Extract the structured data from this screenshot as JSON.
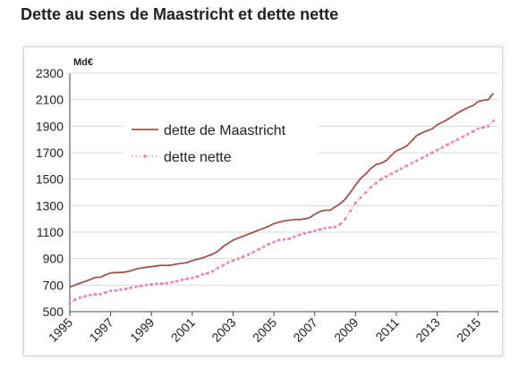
{
  "title": "Dette au sens de Maastricht et dette nette",
  "chart_data": {
    "type": "line",
    "ylabel": "Md€",
    "xlim": [
      1995,
      2016
    ],
    "ylim": [
      500,
      2300
    ],
    "yticks": [
      500,
      700,
      900,
      1100,
      1300,
      1500,
      1700,
      1900,
      2100,
      2300
    ],
    "xticks": [
      "1995",
      "1997",
      "1999",
      "2001",
      "2003",
      "2005",
      "2007",
      "2009",
      "2011",
      "2013",
      "2015"
    ],
    "grid": "horizontal",
    "legend_position": "upper-left inside",
    "series": [
      {
        "name": "dette de Maastricht",
        "color": "#a0524c",
        "style": "solid",
        "x": [
          1995.0,
          1995.25,
          1995.5,
          1995.75,
          1996.0,
          1996.25,
          1996.5,
          1996.75,
          1997.0,
          1997.25,
          1997.5,
          1997.75,
          1998.0,
          1998.25,
          1998.5,
          1998.75,
          1999.0,
          1999.25,
          1999.5,
          1999.75,
          2000.0,
          2000.25,
          2000.5,
          2000.75,
          2001.0,
          2001.25,
          2001.5,
          2001.75,
          2002.0,
          2002.25,
          2002.5,
          2002.75,
          2003.0,
          2003.25,
          2003.5,
          2003.75,
          2004.0,
          2004.25,
          2004.5,
          2004.75,
          2005.0,
          2005.25,
          2005.5,
          2005.75,
          2006.0,
          2006.25,
          2006.5,
          2006.75,
          2007.0,
          2007.25,
          2007.5,
          2007.75,
          2008.0,
          2008.25,
          2008.5,
          2008.75,
          2009.0,
          2009.25,
          2009.5,
          2009.75,
          2010.0,
          2010.25,
          2010.5,
          2010.75,
          2011.0,
          2011.25,
          2011.5,
          2011.75,
          2012.0,
          2012.25,
          2012.5,
          2012.75,
          2013.0,
          2013.25,
          2013.5,
          2013.75,
          2014.0,
          2014.25,
          2014.5,
          2014.75,
          2015.0,
          2015.25,
          2015.5,
          2015.75
        ],
        "values": [
          685,
          700,
          715,
          728,
          742,
          758,
          760,
          778,
          792,
          795,
          795,
          800,
          808,
          822,
          830,
          835,
          840,
          845,
          850,
          848,
          852,
          860,
          865,
          870,
          885,
          895,
          905,
          920,
          935,
          955,
          990,
          1015,
          1040,
          1055,
          1070,
          1085,
          1100,
          1115,
          1130,
          1145,
          1165,
          1175,
          1185,
          1190,
          1195,
          1195,
          1200,
          1210,
          1235,
          1255,
          1265,
          1265,
          1290,
          1315,
          1350,
          1400,
          1455,
          1505,
          1540,
          1580,
          1610,
          1620,
          1640,
          1680,
          1715,
          1730,
          1750,
          1790,
          1830,
          1850,
          1865,
          1880,
          1910,
          1930,
          1950,
          1975,
          2000,
          2020,
          2040,
          2055,
          2085,
          2095,
          2100,
          2150
        ]
      },
      {
        "name": "dette nette",
        "color": "#e285b7",
        "style": "dotted-markers",
        "x": [
          1995.0,
          1995.25,
          1995.5,
          1995.75,
          1996.0,
          1996.25,
          1996.5,
          1996.75,
          1997.0,
          1997.25,
          1997.5,
          1997.75,
          1998.0,
          1998.25,
          1998.5,
          1998.75,
          1999.0,
          1999.25,
          1999.5,
          1999.75,
          2000.0,
          2000.25,
          2000.5,
          2000.75,
          2001.0,
          2001.25,
          2001.5,
          2001.75,
          2002.0,
          2002.25,
          2002.5,
          2002.75,
          2003.0,
          2003.25,
          2003.5,
          2003.75,
          2004.0,
          2004.25,
          2004.5,
          2004.75,
          2005.0,
          2005.25,
          2005.5,
          2005.75,
          2006.0,
          2006.25,
          2006.5,
          2006.75,
          2007.0,
          2007.25,
          2007.5,
          2007.75,
          2008.0,
          2008.25,
          2008.5,
          2008.75,
          2009.0,
          2009.25,
          2009.5,
          2009.75,
          2010.0,
          2010.25,
          2010.5,
          2010.75,
          2011.0,
          2011.25,
          2011.5,
          2011.75,
          2012.0,
          2012.25,
          2012.5,
          2012.75,
          2013.0,
          2013.25,
          2013.5,
          2013.75,
          2014.0,
          2014.25,
          2014.5,
          2014.75,
          2015.0,
          2015.25,
          2015.5,
          2015.75
        ],
        "values": [
          560,
          590,
          605,
          615,
          625,
          630,
          632,
          645,
          658,
          660,
          665,
          672,
          680,
          688,
          695,
          700,
          705,
          710,
          712,
          715,
          722,
          730,
          740,
          748,
          755,
          765,
          780,
          790,
          805,
          830,
          850,
          870,
          885,
          900,
          915,
          930,
          950,
          970,
          990,
          1010,
          1025,
          1040,
          1045,
          1050,
          1065,
          1080,
          1090,
          1100,
          1110,
          1120,
          1130,
          1135,
          1140,
          1160,
          1200,
          1260,
          1320,
          1360,
          1400,
          1440,
          1470,
          1500,
          1520,
          1540,
          1560,
          1580,
          1600,
          1620,
          1640,
          1660,
          1680,
          1700,
          1720,
          1740,
          1760,
          1780,
          1800,
          1820,
          1840,
          1860,
          1880,
          1890,
          1900,
          1940
        ]
      }
    ]
  }
}
